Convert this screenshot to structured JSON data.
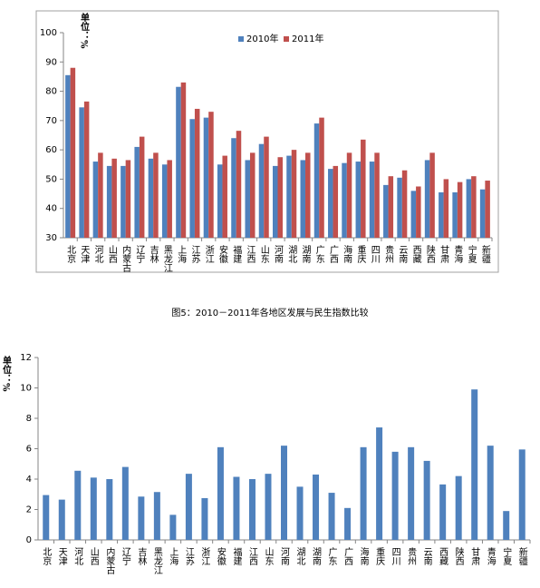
{
  "chart_data": [
    {
      "type": "bar",
      "y_label": "单位：%",
      "caption": "图5：2010－2011年各地区发展与民生指数比较",
      "categories": [
        "北京",
        "天津",
        "河北",
        "山西",
        "内蒙古",
        "辽宁",
        "吉林",
        "黑龙江",
        "上海",
        "江苏",
        "浙江",
        "安徽",
        "福建",
        "江西",
        "山东",
        "河南",
        "湖北",
        "湖南",
        "广东",
        "广西",
        "海南",
        "重庆",
        "四川",
        "贵州",
        "云南",
        "西藏",
        "陕西",
        "甘肃",
        "青海",
        "宁夏",
        "新疆"
      ],
      "series": [
        {
          "name": "2010年",
          "color": "#4f81bd",
          "values": [
            85.5,
            74.5,
            56,
            54.5,
            54.5,
            61,
            57,
            55,
            81.5,
            70.5,
            71,
            55,
            64,
            56.5,
            62,
            54.5,
            58,
            56.5,
            69,
            53.5,
            55.5,
            56,
            56,
            48,
            50.5,
            46,
            56.5,
            45.5,
            45.5,
            50,
            46.5
          ]
        },
        {
          "name": "2011年",
          "color": "#c0504d",
          "values": [
            88,
            76.5,
            59,
            57,
            56.5,
            64.5,
            59,
            56.5,
            83,
            74,
            73,
            58,
            66.5,
            59,
            64.5,
            57.5,
            60,
            59,
            71,
            54.5,
            59,
            63.5,
            59,
            51,
            53,
            47.5,
            59,
            50,
            49,
            51,
            49.5
          ]
        }
      ],
      "ylim": [
        30,
        100
      ],
      "yticks": [
        30,
        40,
        50,
        60,
        70,
        80,
        90,
        100
      ],
      "grid": false,
      "legend": "top"
    },
    {
      "type": "bar",
      "y_label": "单位：%",
      "categories": [
        "北京",
        "天津",
        "河北",
        "山西",
        "内蒙古",
        "辽宁",
        "吉林",
        "黑龙江",
        "上海",
        "江苏",
        "浙江",
        "安徽",
        "福建",
        "江西",
        "山东",
        "河南",
        "湖北",
        "湖南",
        "广东",
        "广西",
        "海南",
        "重庆",
        "四川",
        "贵州",
        "云南",
        "西藏",
        "陕西",
        "甘肃",
        "青海",
        "宁夏",
        "新疆"
      ],
      "series": [
        {
          "name": null,
          "color": "#4f81bd",
          "values": [
            2.95,
            2.65,
            4.55,
            4.1,
            4.0,
            4.8,
            2.85,
            3.15,
            1.65,
            4.35,
            2.75,
            6.1,
            4.15,
            4.0,
            4.35,
            6.2,
            3.5,
            4.3,
            3.1,
            2.1,
            6.1,
            7.4,
            5.8,
            6.1,
            5.2,
            3.65,
            4.2,
            9.9,
            6.2,
            1.9,
            5.95
          ]
        }
      ],
      "ylim": [
        0,
        12
      ],
      "yticks": [
        0,
        2,
        4,
        6,
        8,
        10,
        12
      ],
      "grid": false
    }
  ]
}
